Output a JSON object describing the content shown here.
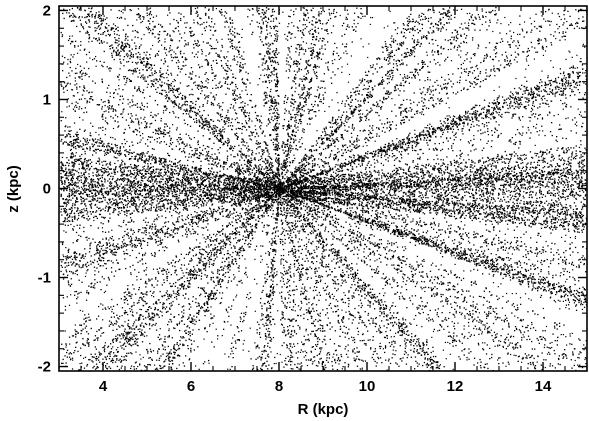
{
  "chart_data": {
    "type": "scatter",
    "title": "",
    "xlabel": "R (kpc)",
    "ylabel": "z (kpc)",
    "xlim": [
      3.0,
      15.0
    ],
    "ylim": [
      -2.05,
      2.05
    ],
    "xticks": [
      4,
      6,
      8,
      10,
      12,
      14
    ],
    "xtick_labels": [
      "4",
      "6",
      "8",
      "10",
      "12",
      "14"
    ],
    "yticks": [
      -2,
      -1,
      0,
      1,
      2
    ],
    "ytick_labels": [
      "-2",
      "-1",
      "0",
      "1",
      "2"
    ],
    "grid": false,
    "legend": "none",
    "point_color": "#000000",
    "point_density_note": "radial spray of points (stars) converging near R = 8 kpc, z = 0 kpc",
    "series": [
      {
        "values": [
          {
            "x": 8.0,
            "y": 0.0
          },
          {
            "x": 7.9,
            "y": 0.02
          },
          {
            "x": 8.1,
            "y": -0.02
          },
          {
            "x": 8.6,
            "y": 0.12
          },
          {
            "x": 9.4,
            "y": 0.25
          },
          {
            "x": 10.3,
            "y": 0.42
          },
          {
            "x": 11.2,
            "y": 0.6
          },
          {
            "x": 12.1,
            "y": 0.78
          },
          {
            "x": 13.0,
            "y": 0.96
          },
          {
            "x": 13.9,
            "y": 1.12
          },
          {
            "x": 14.6,
            "y": 1.25
          },
          {
            "x": 8.7,
            "y": -0.12
          },
          {
            "x": 9.6,
            "y": -0.3
          },
          {
            "x": 10.6,
            "y": -0.48
          },
          {
            "x": 11.6,
            "y": -0.65
          },
          {
            "x": 12.6,
            "y": -0.82
          },
          {
            "x": 13.6,
            "y": -0.98
          },
          {
            "x": 14.5,
            "y": -1.12
          },
          {
            "x": 9.0,
            "y": 0.0
          },
          {
            "x": 10.0,
            "y": 0.05
          },
          {
            "x": 11.0,
            "y": 0.05
          },
          {
            "x": 12.0,
            "y": 0.1
          },
          {
            "x": 13.0,
            "y": 0.1
          },
          {
            "x": 14.0,
            "y": 0.15
          },
          {
            "x": 7.2,
            "y": 0.1
          },
          {
            "x": 6.2,
            "y": 0.2
          },
          {
            "x": 5.2,
            "y": 0.3
          },
          {
            "x": 4.2,
            "y": 0.45
          },
          {
            "x": 3.4,
            "y": 0.55
          },
          {
            "x": 7.2,
            "y": -0.12
          },
          {
            "x": 6.2,
            "y": -0.3
          },
          {
            "x": 5.2,
            "y": -0.5
          },
          {
            "x": 4.2,
            "y": -0.7
          },
          {
            "x": 3.4,
            "y": -0.85
          },
          {
            "x": 7.8,
            "y": 0.6
          },
          {
            "x": 7.7,
            "y": 1.2
          },
          {
            "x": 7.6,
            "y": 1.8
          },
          {
            "x": 8.2,
            "y": 0.7
          },
          {
            "x": 8.4,
            "y": 1.4
          },
          {
            "x": 8.6,
            "y": 1.95
          },
          {
            "x": 7.9,
            "y": -0.6
          },
          {
            "x": 7.8,
            "y": -1.2
          },
          {
            "x": 7.6,
            "y": -1.9
          },
          {
            "x": 8.3,
            "y": -0.7
          },
          {
            "x": 8.7,
            "y": -1.4
          },
          {
            "x": 9.0,
            "y": -1.95
          },
          {
            "x": 6.9,
            "y": 0.45
          },
          {
            "x": 6.0,
            "y": 0.9
          },
          {
            "x": 5.0,
            "y": 1.4
          },
          {
            "x": 4.2,
            "y": 1.8
          },
          {
            "x": 9.1,
            "y": 0.55
          },
          {
            "x": 10.0,
            "y": 1.05
          },
          {
            "x": 11.0,
            "y": 1.55
          },
          {
            "x": 11.8,
            "y": 1.95
          },
          {
            "x": 7.0,
            "y": -0.5
          },
          {
            "x": 6.6,
            "y": -1.0
          },
          {
            "x": 6.0,
            "y": -1.5
          },
          {
            "x": 5.6,
            "y": -1.9
          },
          {
            "x": 9.0,
            "y": -0.6
          },
          {
            "x": 9.8,
            "y": -1.1
          },
          {
            "x": 10.8,
            "y": -1.6
          },
          {
            "x": 11.6,
            "y": -1.95
          }
        ]
      }
    ]
  }
}
